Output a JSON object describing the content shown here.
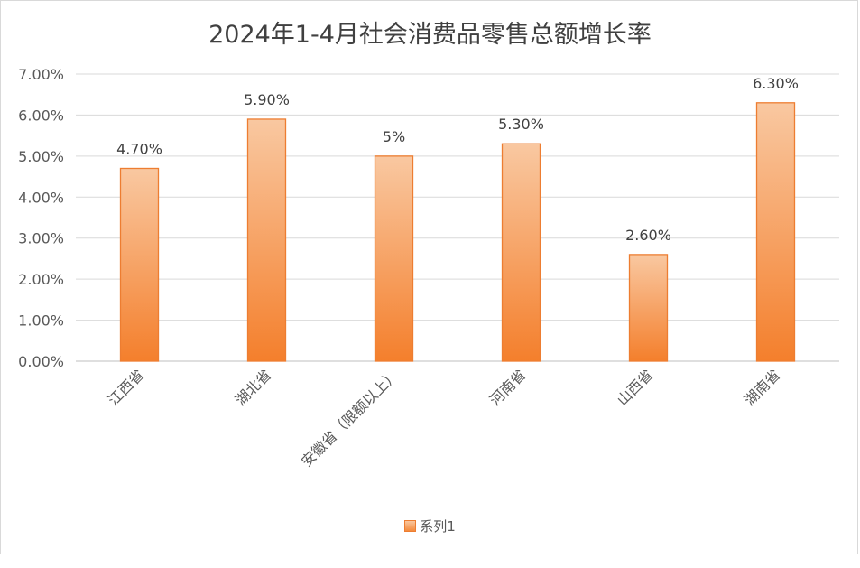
{
  "chart_data": {
    "type": "bar",
    "title": "2024年1-4月社会消费品零售总额增长率",
    "categories": [
      "江西省",
      "湖北省",
      "安徽省（限额以上）",
      "河南省",
      "山西省",
      "湖南省"
    ],
    "series": [
      {
        "name": "系列1",
        "values": [
          4.7,
          5.9,
          5.0,
          5.3,
          2.6,
          6.3
        ],
        "data_labels": [
          "4.70%",
          "5.90%",
          "5%",
          "5.30%",
          "2.60%",
          "6.30%"
        ]
      }
    ],
    "yticks": [
      "0.00%",
      "1.00%",
      "2.00%",
      "3.00%",
      "4.00%",
      "5.00%",
      "6.00%",
      "7.00%"
    ],
    "ylim": [
      0,
      7
    ],
    "xlabel": "",
    "ylabel": "",
    "grid": true,
    "legend": "bottom",
    "bar_color": "#f58b3d",
    "bar_border": "#ed7d31"
  }
}
